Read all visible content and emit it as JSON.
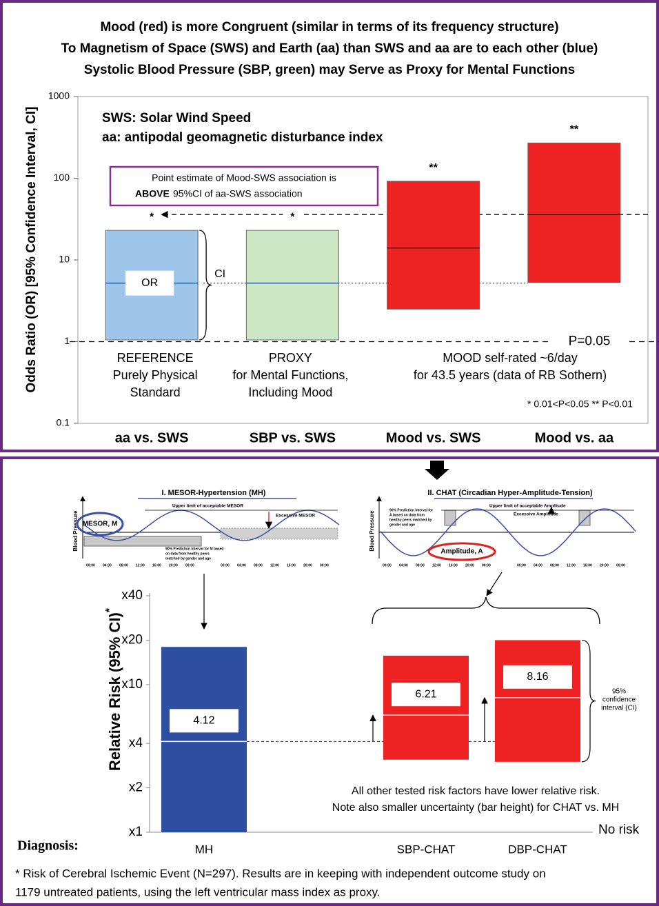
{
  "chart_data": [
    {
      "type": "floating_bar",
      "title": [
        "Mood (red) is more Congruent (similar in terms of its frequency structure)",
        "To Magnetism of Space (SWS) and Earth (aa) than SWS and aa are to each other (blue)",
        "Systolic Blood Pressure (SBP, green) may Serve as Proxy for Mental Functions"
      ],
      "y_label": "Odds Ratio (OR) [95% Confidence Interval, CI]",
      "categories": [
        "aa vs. SWS",
        "SBP vs. SWS",
        "Mood vs. SWS",
        "Mood vs. aa"
      ],
      "category_colors": [
        "#2a3f9e",
        "#2e8b3a",
        "#e41e1e",
        "#e41e1e"
      ],
      "colors": [
        "#9ec6ea",
        "#cbe7c4",
        "#ee2222",
        "#ee2222"
      ],
      "low": [
        1.05,
        1.05,
        2.5,
        5.3
      ],
      "high": [
        23,
        23,
        92,
        270
      ],
      "values": [
        5.2,
        5.2,
        14,
        36
      ],
      "significance": [
        "*",
        "*",
        "**",
        "**"
      ],
      "ylim": [
        0.1,
        1000
      ],
      "yticks": [
        0.1,
        1,
        10,
        100,
        1000
      ],
      "log_scale": true,
      "legend_text": [
        "SWS: Solar Wind Speed",
        "aa: antipodal geomagnetic disturbance index"
      ],
      "callout": [
        "Point estimate of Mood-SWS association is",
        "ABOVE",
        "95%CI of aa-SWS association"
      ],
      "point_label": "OR",
      "interval_label": "CI",
      "threshold": {
        "value": 1,
        "label": "P=0.05"
      },
      "group_labels": [
        [
          "REFERENCE",
          "Purely Physical",
          "Standard"
        ],
        [
          "PROXY",
          "for Mental Functions,",
          "Including Mood"
        ],
        [
          "MOOD self-rated ~6/day",
          "for 43.5 years (data of RB Sothern)"
        ]
      ],
      "note": "* 0.01<P<0.05   ** P<0.01"
    },
    {
      "type": "floating_bar",
      "y_label": "Relative Risk (95% CI)",
      "y_label_mark": "*",
      "x_label": "Diagnosis:",
      "categories": [
        "MH",
        "SBP-CHAT",
        "DBP-CHAT"
      ],
      "colors": [
        "#2e4fa0",
        "#ee2222",
        "#ee2222"
      ],
      "low": [
        1,
        3.1,
        3.0
      ],
      "high": [
        18,
        15.7,
        20
      ],
      "values": [
        4.12,
        6.21,
        8.16
      ],
      "ylim": [
        1,
        40
      ],
      "yticks": [
        {
          "value": 1,
          "label": "x1"
        },
        {
          "value": 2,
          "label": "x2"
        },
        {
          "value": 4,
          "label": "x4"
        },
        {
          "value": 10,
          "label": "x10"
        },
        {
          "value": 20,
          "label": "x20"
        },
        {
          "value": 40,
          "label": "x40"
        }
      ],
      "log_scale": true,
      "baseline_label": "No risk",
      "ci_label": [
        "95%",
        "confidence",
        "interval (CI)"
      ],
      "notes": [
        "All other tested risk factors have lower relative risk.",
        "Note also smaller uncertainty (bar height) for CHAT vs. MH"
      ],
      "footnote": [
        "* Risk of Cerebral Ischemic Event (N=297). Results are in keeping with independent outcome study on",
        "1179 untreated patients, using the left ventricular mass index as proxy."
      ],
      "schematics": [
        {
          "title": "I. MESOR-Hypertension (MH)",
          "axis_label": "Blood Pressure",
          "marker": "MESOR, M",
          "upper_limit": "Upper limit of acceptable MESOR",
          "excess": "Excessive MESOR",
          "interval": [
            "90% Prediction interval for M based",
            "on data from healthy peers",
            "matched by gender and age"
          ]
        },
        {
          "title": "II. CHAT (Circadian Hyper-Amplitude-Tension)",
          "axis_label": "Blood Pressure",
          "marker": "Amplitude, A",
          "upper_limit": "Upper limit of acceptable Amplitude",
          "excess": "Excessive Amplitude",
          "interval": [
            "90% Prediction interval for",
            "A based on data from",
            "healthy peers matched by",
            "gender and age"
          ]
        }
      ],
      "clock_labels": [
        "00:00",
        "04:00",
        "08:00",
        "12:00",
        "16:00",
        "20:00",
        "00:00"
      ]
    }
  ]
}
